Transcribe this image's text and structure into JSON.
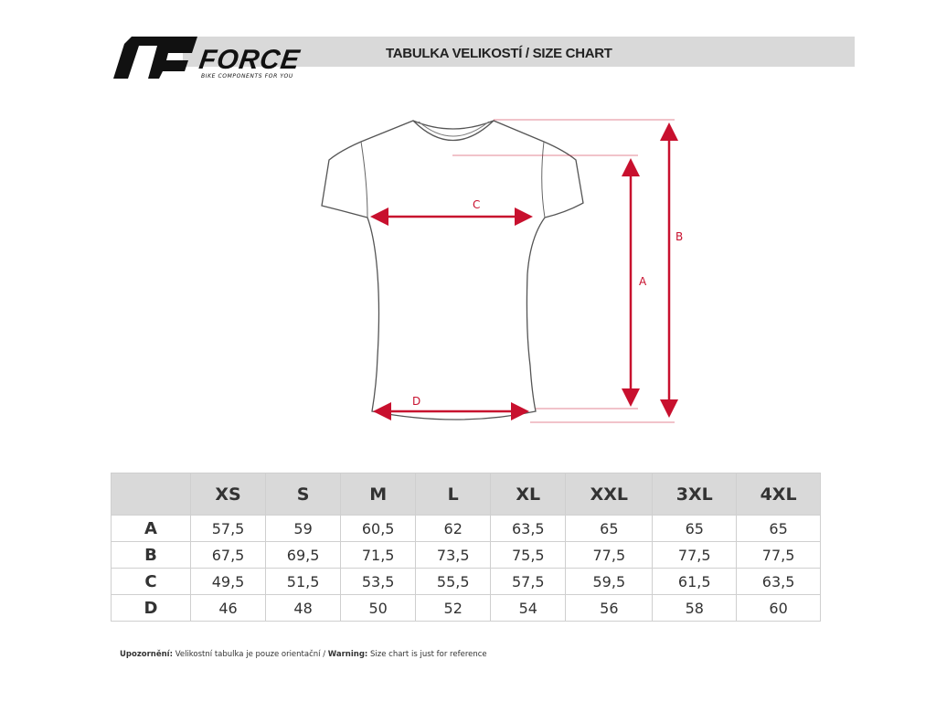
{
  "header": {
    "brand": "FORCE",
    "tagline": "BIKE COMPONENTS FOR YOU",
    "title": "TABULKA VELIKOSTÍ / SIZE CHART"
  },
  "diagram": {
    "labels": {
      "a": "A",
      "b": "B",
      "c": "C",
      "d": "D"
    },
    "accent": "#c8102e"
  },
  "table": {
    "columns": [
      "XS",
      "S",
      "M",
      "L",
      "XL",
      "XXL",
      "3XL",
      "4XL"
    ],
    "rows": [
      {
        "label": "A",
        "values": [
          "57,5",
          "59",
          "60,5",
          "62",
          "63,5",
          "65",
          "65",
          "65"
        ]
      },
      {
        "label": "B",
        "values": [
          "67,5",
          "69,5",
          "71,5",
          "73,5",
          "75,5",
          "77,5",
          "77,5",
          "77,5"
        ]
      },
      {
        "label": "C",
        "values": [
          "49,5",
          "51,5",
          "53,5",
          "55,5",
          "57,5",
          "59,5",
          "61,5",
          "63,5"
        ]
      },
      {
        "label": "D",
        "values": [
          "46",
          "48",
          "50",
          "52",
          "54",
          "56",
          "58",
          "60"
        ]
      }
    ]
  },
  "footer": {
    "warn_cz_label": "Upozornění:",
    "warn_cz": " Velikostní tabulka je pouze orientační / ",
    "warn_en_label": "Warning:",
    "warn_en": " Size chart is just for reference"
  }
}
